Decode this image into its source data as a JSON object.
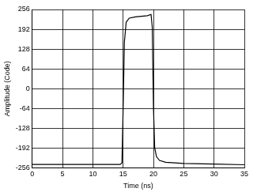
{
  "chart_data": {
    "type": "line",
    "x_label": "Time (ns)",
    "y_label": "Amplitude (Code)",
    "x": [
      0,
      5,
      10,
      14.5,
      14.8,
      15,
      15.2,
      15.5,
      16,
      17,
      18,
      19,
      19.6,
      19.8,
      20,
      20.2,
      20.5,
      21,
      22,
      25,
      30,
      35
    ],
    "values": [
      -245,
      -245,
      -245,
      -245,
      -240,
      -60,
      150,
      215,
      228,
      232,
      234,
      236,
      240,
      200,
      -60,
      -190,
      -220,
      -232,
      -238,
      -242,
      -244,
      -246
    ],
    "color": "#000000",
    "xlim": [
      0,
      35
    ],
    "xticks": [
      0,
      5,
      10,
      15,
      20,
      25,
      30,
      35
    ],
    "ylim": [
      -256,
      256
    ],
    "yticks": [
      -256,
      -192,
      -128,
      -64,
      0,
      64,
      128,
      192,
      256
    ],
    "grid": true
  }
}
